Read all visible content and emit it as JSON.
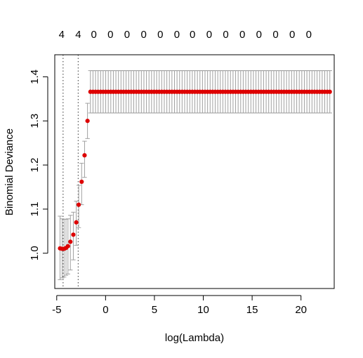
{
  "chart_data": {
    "type": "scatter",
    "xlabel": "log(Lambda)",
    "ylabel": "Binomial Deviance",
    "xlim": [
      -5.2,
      23.4
    ],
    "ylim": [
      0.92,
      1.45
    ],
    "x_ticks": [
      -5,
      0,
      5,
      10,
      15,
      20
    ],
    "y_ticks": [
      1.0,
      1.1,
      1.2,
      1.3,
      1.4
    ],
    "x_tick_labels": [
      "-5",
      "0",
      "5",
      "10",
      "15",
      "20"
    ],
    "y_tick_labels": [
      "1.0",
      "1.1",
      "1.2",
      "1.3",
      "1.4"
    ],
    "top_axis": {
      "labels": [
        "4",
        "4",
        "0",
        "0",
        "0",
        "0",
        "0",
        "0",
        "0",
        "0",
        "0",
        "0",
        "0",
        "0",
        "0",
        "0"
      ],
      "positions": [
        -4.5,
        -2.8,
        -1.2,
        0.5,
        2.2,
        3.9,
        5.6,
        7.3,
        8.9,
        10.6,
        12.3,
        14.0,
        15.7,
        17.4,
        19.1,
        20.8
      ]
    },
    "reference_lines": [
      {
        "x": -4.35,
        "style": "dotted"
      },
      {
        "x": -2.8,
        "style": "dotted"
      }
    ],
    "colors": {
      "points": "#dd0000",
      "error_bars": "#a0a0a0",
      "reference_lines": "#555555"
    },
    "grid": false,
    "series": [
      {
        "x": [
          -4.66,
          -4.45,
          -4.25,
          -4.05,
          -3.85,
          -3.6,
          -3.3,
          -3.0,
          -2.75,
          -2.45,
          -2.15,
          -1.85
        ],
        "y": [
          1.011,
          1.01,
          1.01,
          1.012,
          1.016,
          1.026,
          1.042,
          1.07,
          1.11,
          1.162,
          1.222,
          1.3
        ],
        "lower": [
          0.94,
          0.944,
          0.946,
          0.95,
          0.953,
          0.962,
          0.985,
          1.018,
          1.058,
          1.11,
          1.172,
          1.26
        ],
        "upper": [
          1.084,
          1.078,
          1.077,
          1.077,
          1.078,
          1.086,
          1.093,
          1.118,
          1.154,
          1.204,
          1.254,
          1.34
        ]
      },
      {
        "x_start": -1.55,
        "x_end": 22.95,
        "count": 95,
        "y": 1.366,
        "lower": 1.318,
        "upper": 1.414
      }
    ]
  }
}
